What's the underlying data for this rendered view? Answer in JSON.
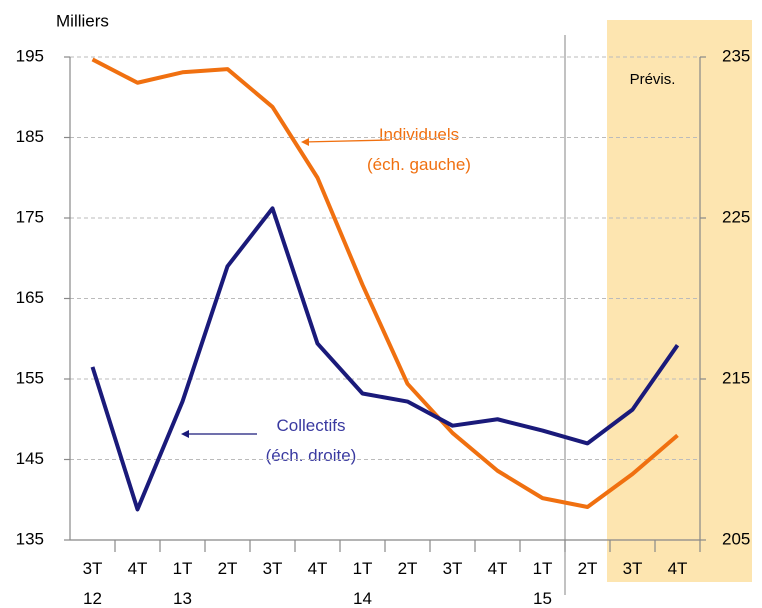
{
  "chart_data": {
    "type": "line",
    "y_unit_label": "Milliers",
    "categories": [
      "3T 12",
      "4T",
      "1T 13",
      "2T",
      "3T",
      "4T",
      "1T 14",
      "2T",
      "3T",
      "4T",
      "1T 15",
      "2T",
      "3T",
      "4T"
    ],
    "series": [
      {
        "name": "Individuels (éch. gauche)",
        "color": "#f07010",
        "axis": "y",
        "values": [
          194.7,
          191.8,
          193.1,
          193.5,
          188.8,
          180.0,
          166.7,
          154.4,
          148.3,
          143.6,
          140.2,
          139.1,
          143.2,
          148.0
        ]
      },
      {
        "name": "Collectifs (éch. droite)",
        "color": "#1a1a7a",
        "axis": "y2",
        "values": [
          215.75,
          206.9,
          213.6,
          222.0,
          225.6,
          217.2,
          214.1,
          213.6,
          212.1,
          212.5,
          211.8,
          211.0,
          213.1,
          217.1
        ]
      }
    ],
    "ylim": [
      135,
      195
    ],
    "yticks": [
      135,
      145,
      155,
      165,
      175,
      185,
      195
    ],
    "y2lim": [
      205,
      235
    ],
    "y2ticks": [
      205,
      215,
      225,
      235
    ],
    "grid": true,
    "forecast": {
      "label": "Prévis.",
      "from_index": 12
    }
  }
}
